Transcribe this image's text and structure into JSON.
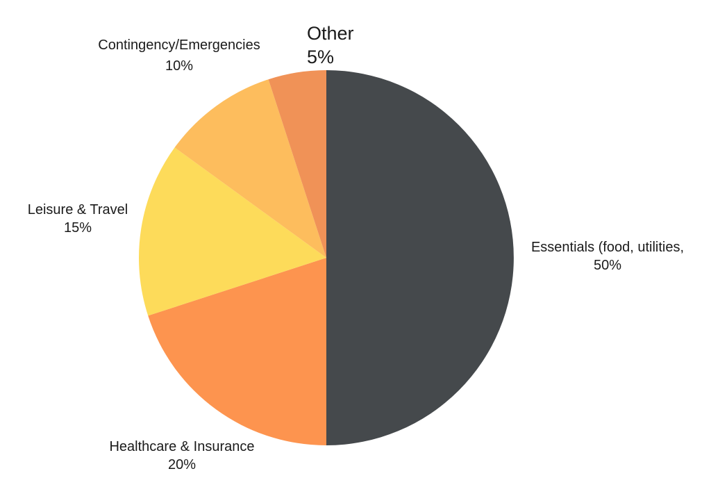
{
  "chart_data": {
    "type": "pie",
    "title": "",
    "slices": [
      {
        "label": "Essentials (food, utilities,",
        "percent_label": "50%",
        "value": 50,
        "color": "#45494c"
      },
      {
        "label": "Healthcare & Insurance",
        "percent_label": "20%",
        "value": 20,
        "color": "#fd944f"
      },
      {
        "label": "Leisure & Travel",
        "percent_label": "15%",
        "value": 15,
        "color": "#fddb5a"
      },
      {
        "label": "Contingency/Emergencies",
        "percent_label": "10%",
        "value": 10,
        "color": "#fdbd5d"
      },
      {
        "label": "Other",
        "percent_label": "5%",
        "value": 5,
        "color": "#f09257"
      }
    ],
    "start_angle": "12 o'clock",
    "direction": "clockwise",
    "legend": "none",
    "labels": "outside"
  }
}
